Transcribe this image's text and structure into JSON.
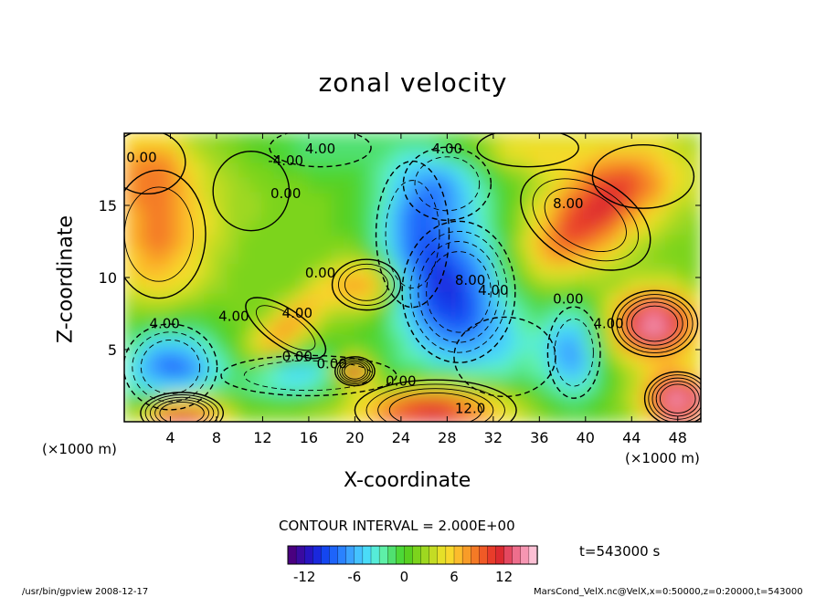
{
  "chart_data": {
    "type": "heatmap",
    "title": "zonal velocity",
    "xlabel": "X-coordinate",
    "ylabel": "Z-coordinate",
    "x_units_left": "(×1000 m)",
    "x_units_right": "(×1000 m)",
    "x_ticks": [
      "4",
      "8",
      "12",
      "16",
      "20",
      "24",
      "28",
      "32",
      "36",
      "40",
      "44",
      "48"
    ],
    "y_ticks": [
      "5",
      "10",
      "15"
    ],
    "xlim": [
      0,
      50
    ],
    "ylim": [
      0,
      20
    ],
    "contour_labels": [
      {
        "text": "0.00",
        "x": 1.5,
        "y": 18.0
      },
      {
        "text": "-4.00",
        "x": 14,
        "y": 17.8
      },
      {
        "text": "4.00",
        "x": 17,
        "y": 18.6
      },
      {
        "text": "4.00",
        "x": 28,
        "y": 18.6
      },
      {
        "text": "0.00",
        "x": 14,
        "y": 15.5
      },
      {
        "text": "0.00",
        "x": 17,
        "y": 10.0
      },
      {
        "text": "8.00",
        "x": 38.5,
        "y": 14.8
      },
      {
        "text": "8.00",
        "x": 30,
        "y": 9.5
      },
      {
        "text": "4.00",
        "x": 32,
        "y": 8.8
      },
      {
        "text": "0.00",
        "x": 38.5,
        "y": 8.2
      },
      {
        "text": "4.00",
        "x": 3.5,
        "y": 6.5
      },
      {
        "text": "4.00",
        "x": 9.5,
        "y": 7.0
      },
      {
        "text": "4.00",
        "x": 15,
        "y": 7.2
      },
      {
        "text": "0.00",
        "x": 15,
        "y": 4.2
      },
      {
        "text": "0.00",
        "x": 18,
        "y": 3.7
      },
      {
        "text": "0.00",
        "x": 24,
        "y": 2.5
      },
      {
        "text": "12.0",
        "x": 30,
        "y": 0.6
      },
      {
        "text": "4.00",
        "x": 42,
        "y": 6.5
      }
    ],
    "colorbar": {
      "colors": [
        "#4a0080",
        "#3a0aa0",
        "#2814c0",
        "#1a28dc",
        "#1446f0",
        "#1e64fa",
        "#2a82ff",
        "#3aa2ff",
        "#44c2ff",
        "#4adcf8",
        "#56ecd8",
        "#5ef0a8",
        "#50e070",
        "#4cd838",
        "#58d020",
        "#7cd41c",
        "#9ed820",
        "#c4dc24",
        "#e6e028",
        "#f8d82c",
        "#fcbc2c",
        "#f89c28",
        "#f47a26",
        "#f05a26",
        "#e83c2a",
        "#dc2a30",
        "#e44860",
        "#ee6e8c",
        "#f696b2",
        "#fcc0d4"
      ],
      "tick_labels": [
        "-12",
        "-6",
        "0",
        "6",
        "12"
      ],
      "tick_values": [
        -12,
        -6,
        0,
        6,
        12
      ],
      "vmin": -14,
      "vmax": 16
    },
    "contour_interval_text": "CONTOUR INTERVAL = 2.000E+00",
    "time_label": "t=543000 s"
  },
  "footer": {
    "left": "/usr/bin/gpview  2008-12-17",
    "right": "MarsCond_VelX.nc@VelX,x=0:50000,z=0:20000,t=543000"
  }
}
